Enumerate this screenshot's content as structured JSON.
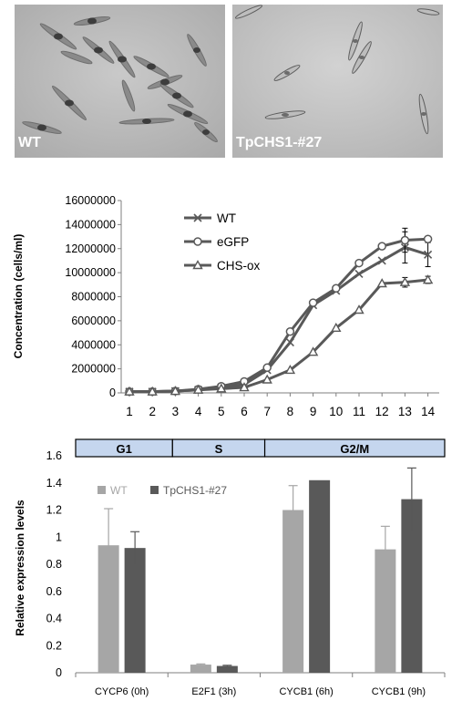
{
  "panels": {
    "left_label": "WT",
    "right_label": "TpCHS1-#27"
  },
  "chart_data": [
    {
      "type": "line",
      "title": "",
      "xlabel": "",
      "ylabel": "Concentration (cells/ml)",
      "ylim": [
        0,
        16000000
      ],
      "yticks": [
        0,
        2000000,
        4000000,
        6000000,
        8000000,
        10000000,
        12000000,
        14000000,
        16000000
      ],
      "x": [
        1,
        2,
        3,
        4,
        5,
        6,
        7,
        8,
        9,
        10,
        11,
        12,
        13,
        14
      ],
      "legend_position": "top-left",
      "series": [
        {
          "name": "WT",
          "marker": "x",
          "values": [
            100000,
            100000,
            150000,
            250000,
            450000,
            700000,
            1900000,
            4200000,
            7300000,
            8500000,
            9900000,
            11000000,
            12100000,
            11500000
          ],
          "errors": [
            0,
            0,
            0,
            0,
            0,
            0,
            0,
            0,
            0,
            0,
            0,
            0,
            1300000,
            1000000
          ]
        },
        {
          "name": "eGFP",
          "marker": "circle",
          "values": [
            100000,
            100000,
            150000,
            300000,
            550000,
            950000,
            2100000,
            5100000,
            7500000,
            8700000,
            10800000,
            12200000,
            12700000,
            12800000
          ],
          "errors": [
            0,
            0,
            0,
            0,
            0,
            0,
            0,
            0,
            0,
            0,
            0,
            0,
            1000000,
            0
          ]
        },
        {
          "name": "CHS-ox",
          "marker": "triangle",
          "values": [
            100000,
            100000,
            150000,
            250000,
            350000,
            450000,
            1100000,
            1900000,
            3400000,
            5400000,
            6900000,
            9100000,
            9200000,
            9400000
          ],
          "errors": [
            0,
            0,
            0,
            0,
            0,
            0,
            0,
            0,
            0,
            0,
            0,
            0,
            400000,
            300000
          ]
        }
      ],
      "grid": false
    },
    {
      "type": "bar",
      "title": "",
      "xlabel": "",
      "ylabel": "Relative expression levels",
      "ylim": [
        0,
        1.6
      ],
      "yticks": [
        "0",
        "0.2",
        "0.4",
        "0.6",
        "0.8",
        "1",
        "1.2",
        "1.4",
        "1.6"
      ],
      "categories": [
        "CYCP6 (0h)",
        "E2F1 (3h)",
        "CYCB1 (6h)",
        "CYCB1 (9h)"
      ],
      "phases": [
        {
          "label": "G1",
          "start": 0,
          "end": 1.05
        },
        {
          "label": "S",
          "start": 1.05,
          "end": 2.05
        },
        {
          "label": "G2/M",
          "start": 2.05,
          "end": 4
        }
      ],
      "legend_position": "top-left",
      "series": [
        {
          "name": "WT",
          "color": "#a6a6a6",
          "values": [
            0.94,
            0.06,
            1.2,
            0.91
          ],
          "errors": [
            0.27,
            0.005,
            0.18,
            0.17
          ]
        },
        {
          "name": "TpCHS1-#27",
          "color": "#595959",
          "values": [
            0.92,
            0.05,
            1.42,
            1.28
          ],
          "errors": [
            0.12,
            0.005,
            0,
            0.23
          ]
        }
      ],
      "grid": false
    }
  ]
}
